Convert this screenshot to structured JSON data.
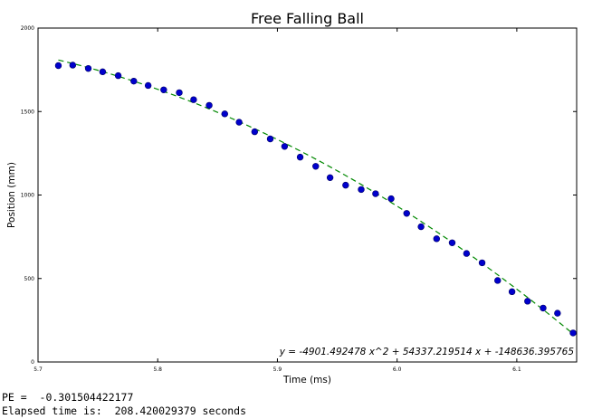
{
  "chart_data": {
    "type": "scatter",
    "title": "Free Falling Ball",
    "xlabel": "Time (ms)",
    "ylabel": "Position (mm)",
    "xlim": [
      5.7,
      6.15
    ],
    "ylim": [
      0,
      2000
    ],
    "xticks": [
      "5.7",
      "5.8",
      "5.9",
      "6.0",
      "6.1"
    ],
    "yticks": [
      "0",
      "500",
      "1000",
      "1500",
      "2000"
    ],
    "grid": false,
    "series": [
      {
        "name": "",
        "style": "markers",
        "color": "#0000cc",
        "x": [
          5.717,
          5.729,
          5.742,
          5.754,
          5.767,
          5.78,
          5.792,
          5.805,
          5.818,
          5.83,
          5.843,
          5.856,
          5.868,
          5.881,
          5.894,
          5.906,
          5.919,
          5.932,
          5.944,
          5.957,
          5.97,
          5.982,
          5.995,
          6.008,
          6.02,
          6.033,
          6.046,
          6.058,
          6.071,
          6.084,
          6.096,
          6.109,
          6.122,
          6.134,
          6.147
        ],
        "y": [
          1775,
          1778,
          1758,
          1738,
          1715,
          1682,
          1656,
          1630,
          1613,
          1571,
          1537,
          1486,
          1436,
          1379,
          1336,
          1291,
          1227,
          1172,
          1104,
          1059,
          1033,
          1008,
          978,
          890,
          810,
          738,
          714,
          650,
          594,
          488,
          421,
          364,
          323,
          292,
          174
        ]
      },
      {
        "name": "",
        "style": "dashed-fit",
        "color": "#008800",
        "coefficients": [
          -4901.492478,
          54337.219514,
          -148636.395765
        ],
        "x_range": [
          5.717,
          6.147
        ]
      }
    ],
    "annotation": "y = -4901.492478 x^2 + 54337.219514 x + -148636.395765"
  },
  "console": {
    "pe_line": "PE =  -0.301504422177",
    "elapsed_line": "Elapsed time is:  208.420029379 seconds"
  }
}
